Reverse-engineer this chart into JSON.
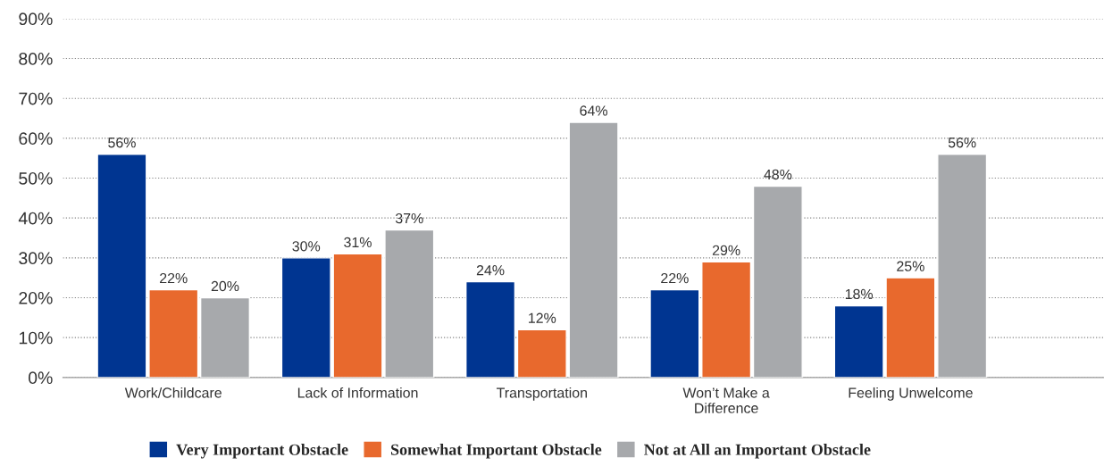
{
  "chart_data": {
    "type": "bar",
    "categories": [
      "Work/Childcare",
      "Lack of Information",
      "Transportation",
      "Won’t Make a\nDifference",
      "Feeling Unwelcome"
    ],
    "series": [
      {
        "name": "Very Important Obstacle",
        "color": "#003591",
        "values": [
          56,
          30,
          24,
          22,
          18
        ],
        "value_labels": [
          "56%",
          "30%",
          "24%",
          "22%",
          "18%"
        ]
      },
      {
        "name": "Somewhat Important Obstacle",
        "color": "#e8692d",
        "values": [
          22,
          31,
          12,
          29,
          25
        ],
        "value_labels": [
          "22%",
          "31%",
          "12%",
          "29%",
          "25%"
        ]
      },
      {
        "name": "Not at All an Important Obstacle",
        "color": "#a7a9ac",
        "values": [
          20,
          37,
          64,
          48,
          56
        ],
        "value_labels": [
          "20%",
          "37%",
          "64%",
          "48%",
          "56%"
        ]
      }
    ],
    "ylim": [
      0,
      90
    ],
    "yticks": [
      {
        "value": 0,
        "label": "0%"
      },
      {
        "value": 10,
        "label": "10%"
      },
      {
        "value": 20,
        "label": "20%"
      },
      {
        "value": 30,
        "label": "30%"
      },
      {
        "value": 40,
        "label": "40%"
      },
      {
        "value": 50,
        "label": "50%"
      },
      {
        "value": 60,
        "label": "60%"
      },
      {
        "value": 70,
        "label": "70%"
      },
      {
        "value": 80,
        "label": "80%"
      },
      {
        "value": 90,
        "label": "90%"
      }
    ],
    "grid": "y",
    "legend": "bottom"
  }
}
